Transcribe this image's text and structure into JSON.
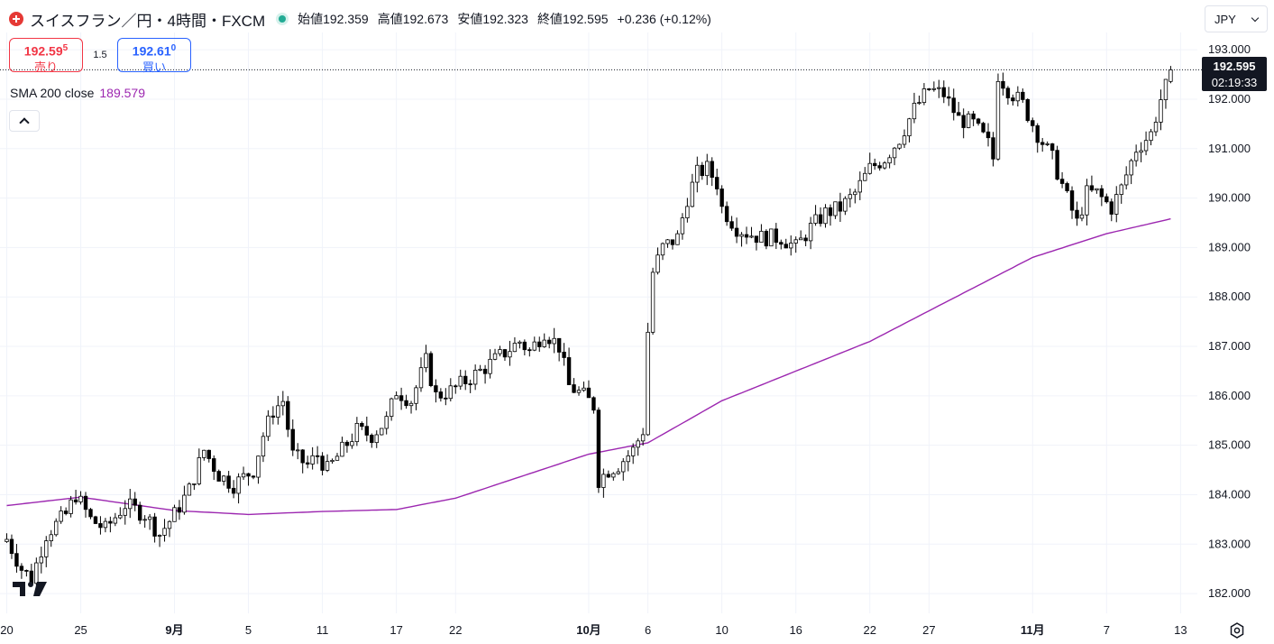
{
  "header": {
    "symbol_title": "スイスフラン／円・4時間・FXCM",
    "open_label": "始値",
    "open": "192.359",
    "high_label": "高値",
    "high": "192.673",
    "low_label": "安値",
    "low": "192.323",
    "close_label": "終値",
    "close": "192.595",
    "change": "+0.236 (+0.12%)"
  },
  "trade": {
    "sell_price_main": "192.59",
    "sell_price_sup": "5",
    "sell_label": "売り",
    "spread": "1.5",
    "buy_price_main": "192.61",
    "buy_price_sup": "0",
    "buy_label": "買い"
  },
  "indicator": {
    "name": "SMA 200 close",
    "value": "189.579",
    "color": "#9c27b0"
  },
  "currency_selector": "JPY",
  "last_price": {
    "price": "192.595",
    "countdown": "02:19:33"
  },
  "colors": {
    "up": "#ffffff",
    "down": "#000000",
    "outline": "#000000",
    "sma": "#9c27b0",
    "grid": "#f0f3fa"
  },
  "chart_data": {
    "type": "candlestick",
    "ylim": [
      181.6,
      193.35
    ],
    "y_ticks": [
      "182.000",
      "183.000",
      "184.000",
      "185.000",
      "186.000",
      "187.000",
      "188.000",
      "189.000",
      "190.000",
      "191.000",
      "192.000",
      "193.000"
    ],
    "x_ticks": [
      {
        "label": "20",
        "bold": false,
        "bar": 0
      },
      {
        "label": "25",
        "bold": false,
        "bar": 15
      },
      {
        "label": "9月",
        "bold": true,
        "bar": 34
      },
      {
        "label": "5",
        "bold": false,
        "bar": 49
      },
      {
        "label": "11",
        "bold": false,
        "bar": 64
      },
      {
        "label": "17",
        "bold": false,
        "bar": 79
      },
      {
        "label": "22",
        "bold": false,
        "bar": 91
      },
      {
        "label": "10月",
        "bold": true,
        "bar": 118
      },
      {
        "label": "6",
        "bold": false,
        "bar": 130
      },
      {
        "label": "10",
        "bold": false,
        "bar": 145
      },
      {
        "label": "16",
        "bold": false,
        "bar": 160
      },
      {
        "label": "22",
        "bold": false,
        "bar": 175
      },
      {
        "label": "27",
        "bold": false,
        "bar": 187
      },
      {
        "label": "11月",
        "bold": true,
        "bar": 208
      },
      {
        "label": "7",
        "bold": false,
        "bar": 223
      },
      {
        "label": "13",
        "bold": false,
        "bar": 238
      }
    ],
    "series_anchors": [
      [
        0,
        183.1
      ],
      [
        3,
        182.5
      ],
      [
        5,
        182.3
      ],
      [
        8,
        183.2
      ],
      [
        12,
        183.6
      ],
      [
        14,
        184.0
      ],
      [
        17,
        183.5
      ],
      [
        20,
        183.3
      ],
      [
        24,
        183.8
      ],
      [
        28,
        183.6
      ],
      [
        31,
        183.2
      ],
      [
        34,
        183.6
      ],
      [
        37,
        184.1
      ],
      [
        40,
        184.9
      ],
      [
        43,
        184.4
      ],
      [
        46,
        184.2
      ],
      [
        50,
        184.5
      ],
      [
        52,
        185.2
      ],
      [
        54,
        185.7
      ],
      [
        56,
        185.9
      ],
      [
        58,
        184.8
      ],
      [
        61,
        184.6
      ],
      [
        63,
        184.8
      ],
      [
        65,
        184.5
      ],
      [
        68,
        184.9
      ],
      [
        71,
        185.3
      ],
      [
        74,
        185.2
      ],
      [
        77,
        185.5
      ],
      [
        79,
        186.1
      ],
      [
        82,
        185.9
      ],
      [
        85,
        186.7
      ],
      [
        87,
        186.0
      ],
      [
        90,
        186.1
      ],
      [
        93,
        186.3
      ],
      [
        96,
        186.5
      ],
      [
        100,
        186.8
      ],
      [
        104,
        187.1
      ],
      [
        106,
        186.9
      ],
      [
        109,
        187.3
      ],
      [
        112,
        187.0
      ],
      [
        114,
        186.2
      ],
      [
        117,
        186.0
      ],
      [
        119,
        185.8
      ],
      [
        120,
        184.3
      ],
      [
        122,
        184.5
      ],
      [
        124,
        184.6
      ],
      [
        127,
        184.9
      ],
      [
        129,
        185.3
      ],
      [
        130,
        187.3
      ],
      [
        131,
        188.5
      ],
      [
        133,
        189.0
      ],
      [
        136,
        189.2
      ],
      [
        138,
        190.0
      ],
      [
        140,
        190.5
      ],
      [
        142,
        190.6
      ],
      [
        144,
        190.3
      ],
      [
        145,
        189.8
      ],
      [
        148,
        189.4
      ],
      [
        150,
        189.3
      ],
      [
        153,
        189.2
      ],
      [
        157,
        189.2
      ],
      [
        160,
        189.0
      ],
      [
        163,
        189.4
      ],
      [
        166,
        189.7
      ],
      [
        169,
        189.8
      ],
      [
        172,
        190.1
      ],
      [
        175,
        190.6
      ],
      [
        178,
        190.8
      ],
      [
        181,
        191.2
      ],
      [
        184,
        191.8
      ],
      [
        187,
        192.2
      ],
      [
        190,
        192.1
      ],
      [
        193,
        191.6
      ],
      [
        196,
        191.5
      ],
      [
        199,
        191.1
      ],
      [
        200,
        190.8
      ],
      [
        201,
        192.5
      ],
      [
        203,
        192.2
      ],
      [
        206,
        191.9
      ],
      [
        209,
        191.3
      ],
      [
        212,
        190.8
      ],
      [
        215,
        190.0
      ],
      [
        217,
        189.5
      ],
      [
        219,
        190.1
      ],
      [
        221,
        190.1
      ],
      [
        224,
        189.8
      ],
      [
        226,
        190.2
      ],
      [
        229,
        191.0
      ],
      [
        232,
        191.3
      ],
      [
        234,
        192.0
      ],
      [
        236,
        192.5
      ]
    ],
    "sma_anchors": [
      [
        0,
        183.78
      ],
      [
        15,
        183.95
      ],
      [
        34,
        183.68
      ],
      [
        49,
        183.6
      ],
      [
        64,
        183.66
      ],
      [
        79,
        183.7
      ],
      [
        91,
        183.93
      ],
      [
        118,
        184.82
      ],
      [
        130,
        185.05
      ],
      [
        145,
        185.9
      ],
      [
        160,
        186.5
      ],
      [
        175,
        187.1
      ],
      [
        187,
        187.72
      ],
      [
        208,
        188.8
      ],
      [
        223,
        189.28
      ],
      [
        236,
        189.58
      ]
    ]
  }
}
